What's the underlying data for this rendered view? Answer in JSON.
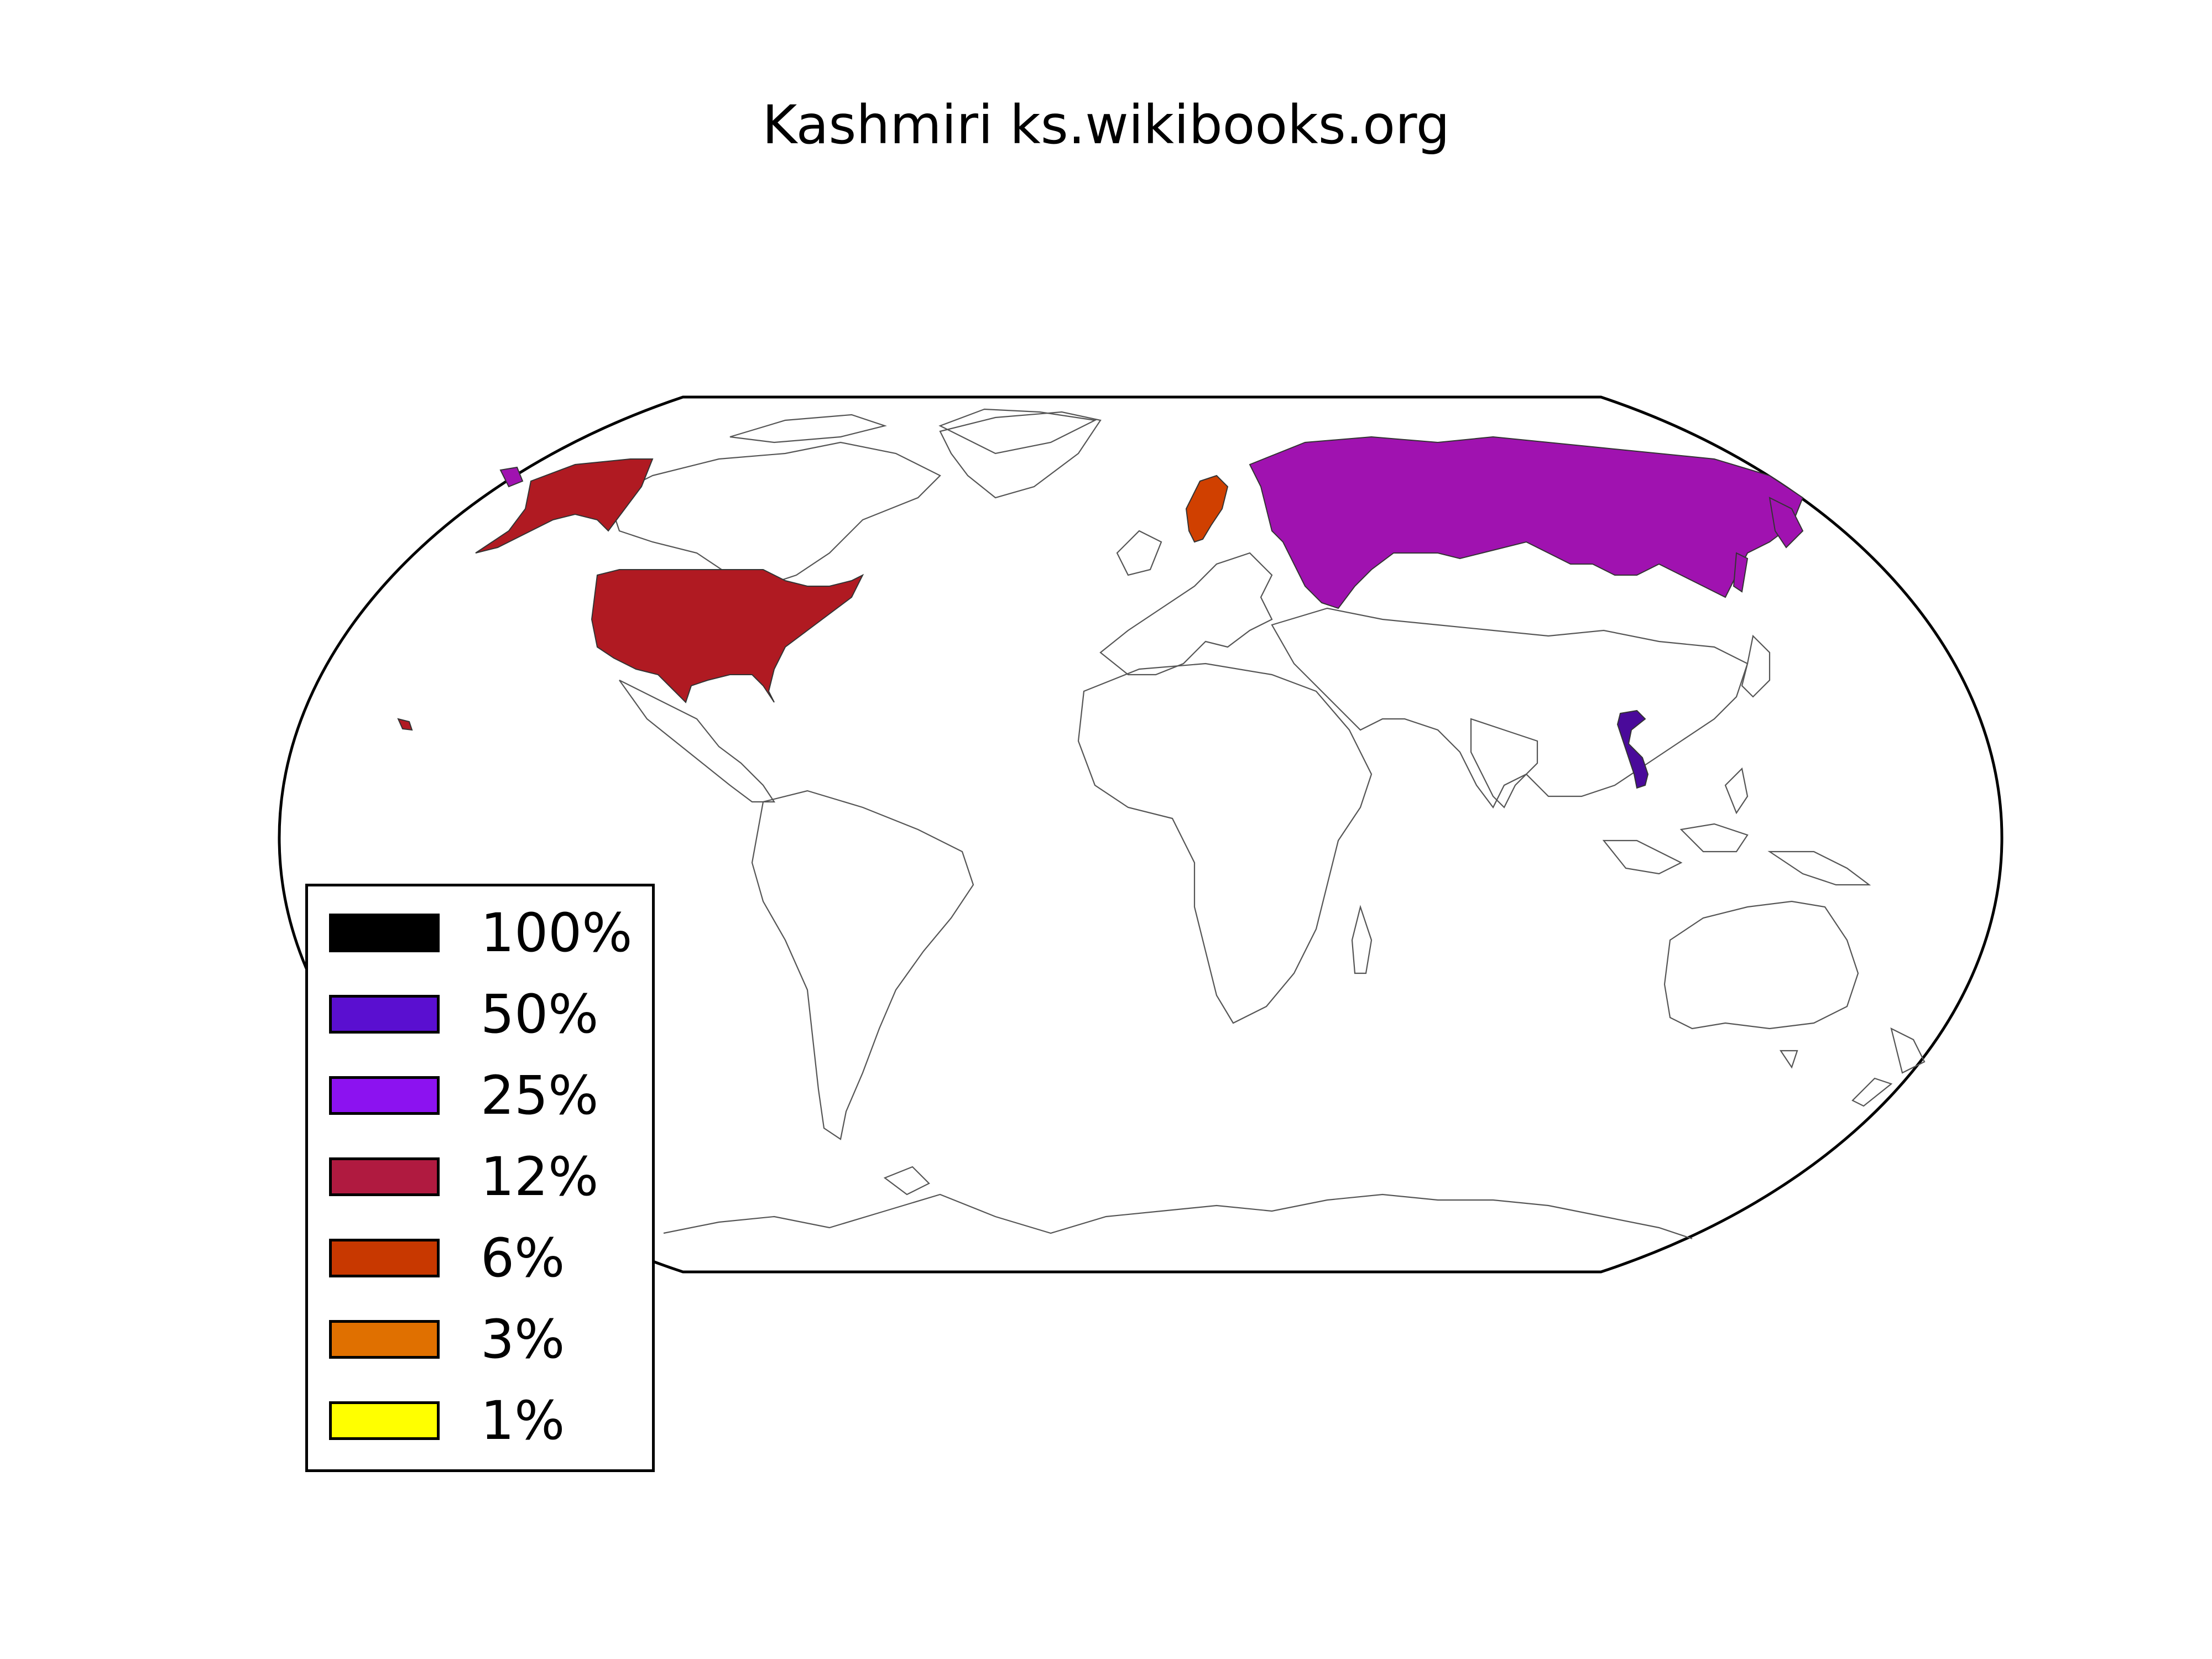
{
  "title": "Kashmiri ks.wikibooks.org",
  "legend": [
    {
      "label": "100%",
      "color": "#000000"
    },
    {
      "label": "50%",
      "color": "#5a0fd0"
    },
    {
      "label": "25%",
      "color": "#8c12f0"
    },
    {
      "label": "12%",
      "color": "#b01a40"
    },
    {
      "label": "6%",
      "color": "#c83800"
    },
    {
      "label": "3%",
      "color": "#e07000"
    },
    {
      "label": "1%",
      "color": "#ffff00"
    }
  ],
  "regions": [
    {
      "name": "Russia",
      "color": "#a012b0"
    },
    {
      "name": "United States",
      "color": "#b01a22"
    },
    {
      "name": "Sweden",
      "color": "#d04000"
    },
    {
      "name": "Vietnam",
      "color": "#4a0a9a"
    }
  ]
}
